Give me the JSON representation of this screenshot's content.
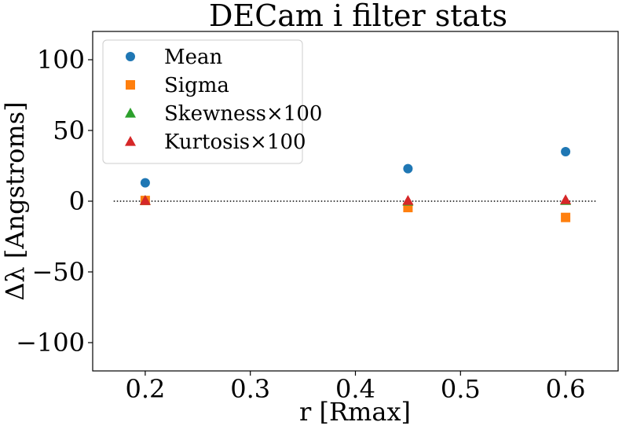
{
  "chart_data": {
    "type": "scatter",
    "title": "DECam i filter stats",
    "xlabel": "r [Rmax]",
    "ylabel": "Δλ [Angstroms]",
    "xlim": [
      0.15,
      0.65
    ],
    "ylim": [
      -120,
      120
    ],
    "xticks": [
      0.2,
      0.3,
      0.4,
      0.5,
      0.6
    ],
    "xtick_labels": [
      "0.2",
      "0.3",
      "0.4",
      "0.5",
      "0.6"
    ],
    "yticks": [
      -100,
      -50,
      0,
      50,
      100
    ],
    "ytick_labels": [
      "−100",
      "−50",
      "0",
      "50",
      "100"
    ],
    "legend_position": "top-left",
    "reference_line": {
      "y": 0,
      "x_start": 0.17,
      "x_end": 0.63,
      "style": "dotted",
      "color": "#000000"
    },
    "series": [
      {
        "name": "Mean",
        "marker": "circle",
        "color": "#1f77b4",
        "x": [
          0.2,
          0.45,
          0.6
        ],
        "y": [
          13,
          23,
          35
        ]
      },
      {
        "name": "Sigma",
        "marker": "square",
        "color": "#ff7f0e",
        "x": [
          0.2,
          0.45,
          0.6
        ],
        "y": [
          0.5,
          -4.5,
          -11.5
        ]
      },
      {
        "name": "Skewness×100",
        "marker": "triangle",
        "color": "#2ca02c",
        "x": [
          0.2,
          0.45,
          0.6
        ],
        "y": [
          0.5,
          0,
          0.5
        ]
      },
      {
        "name": "Kurtosis×100",
        "marker": "triangle",
        "color": "#d62728",
        "x": [
          0.2,
          0.45,
          0.6
        ],
        "y": [
          0.5,
          0.5,
          1
        ]
      }
    ]
  }
}
